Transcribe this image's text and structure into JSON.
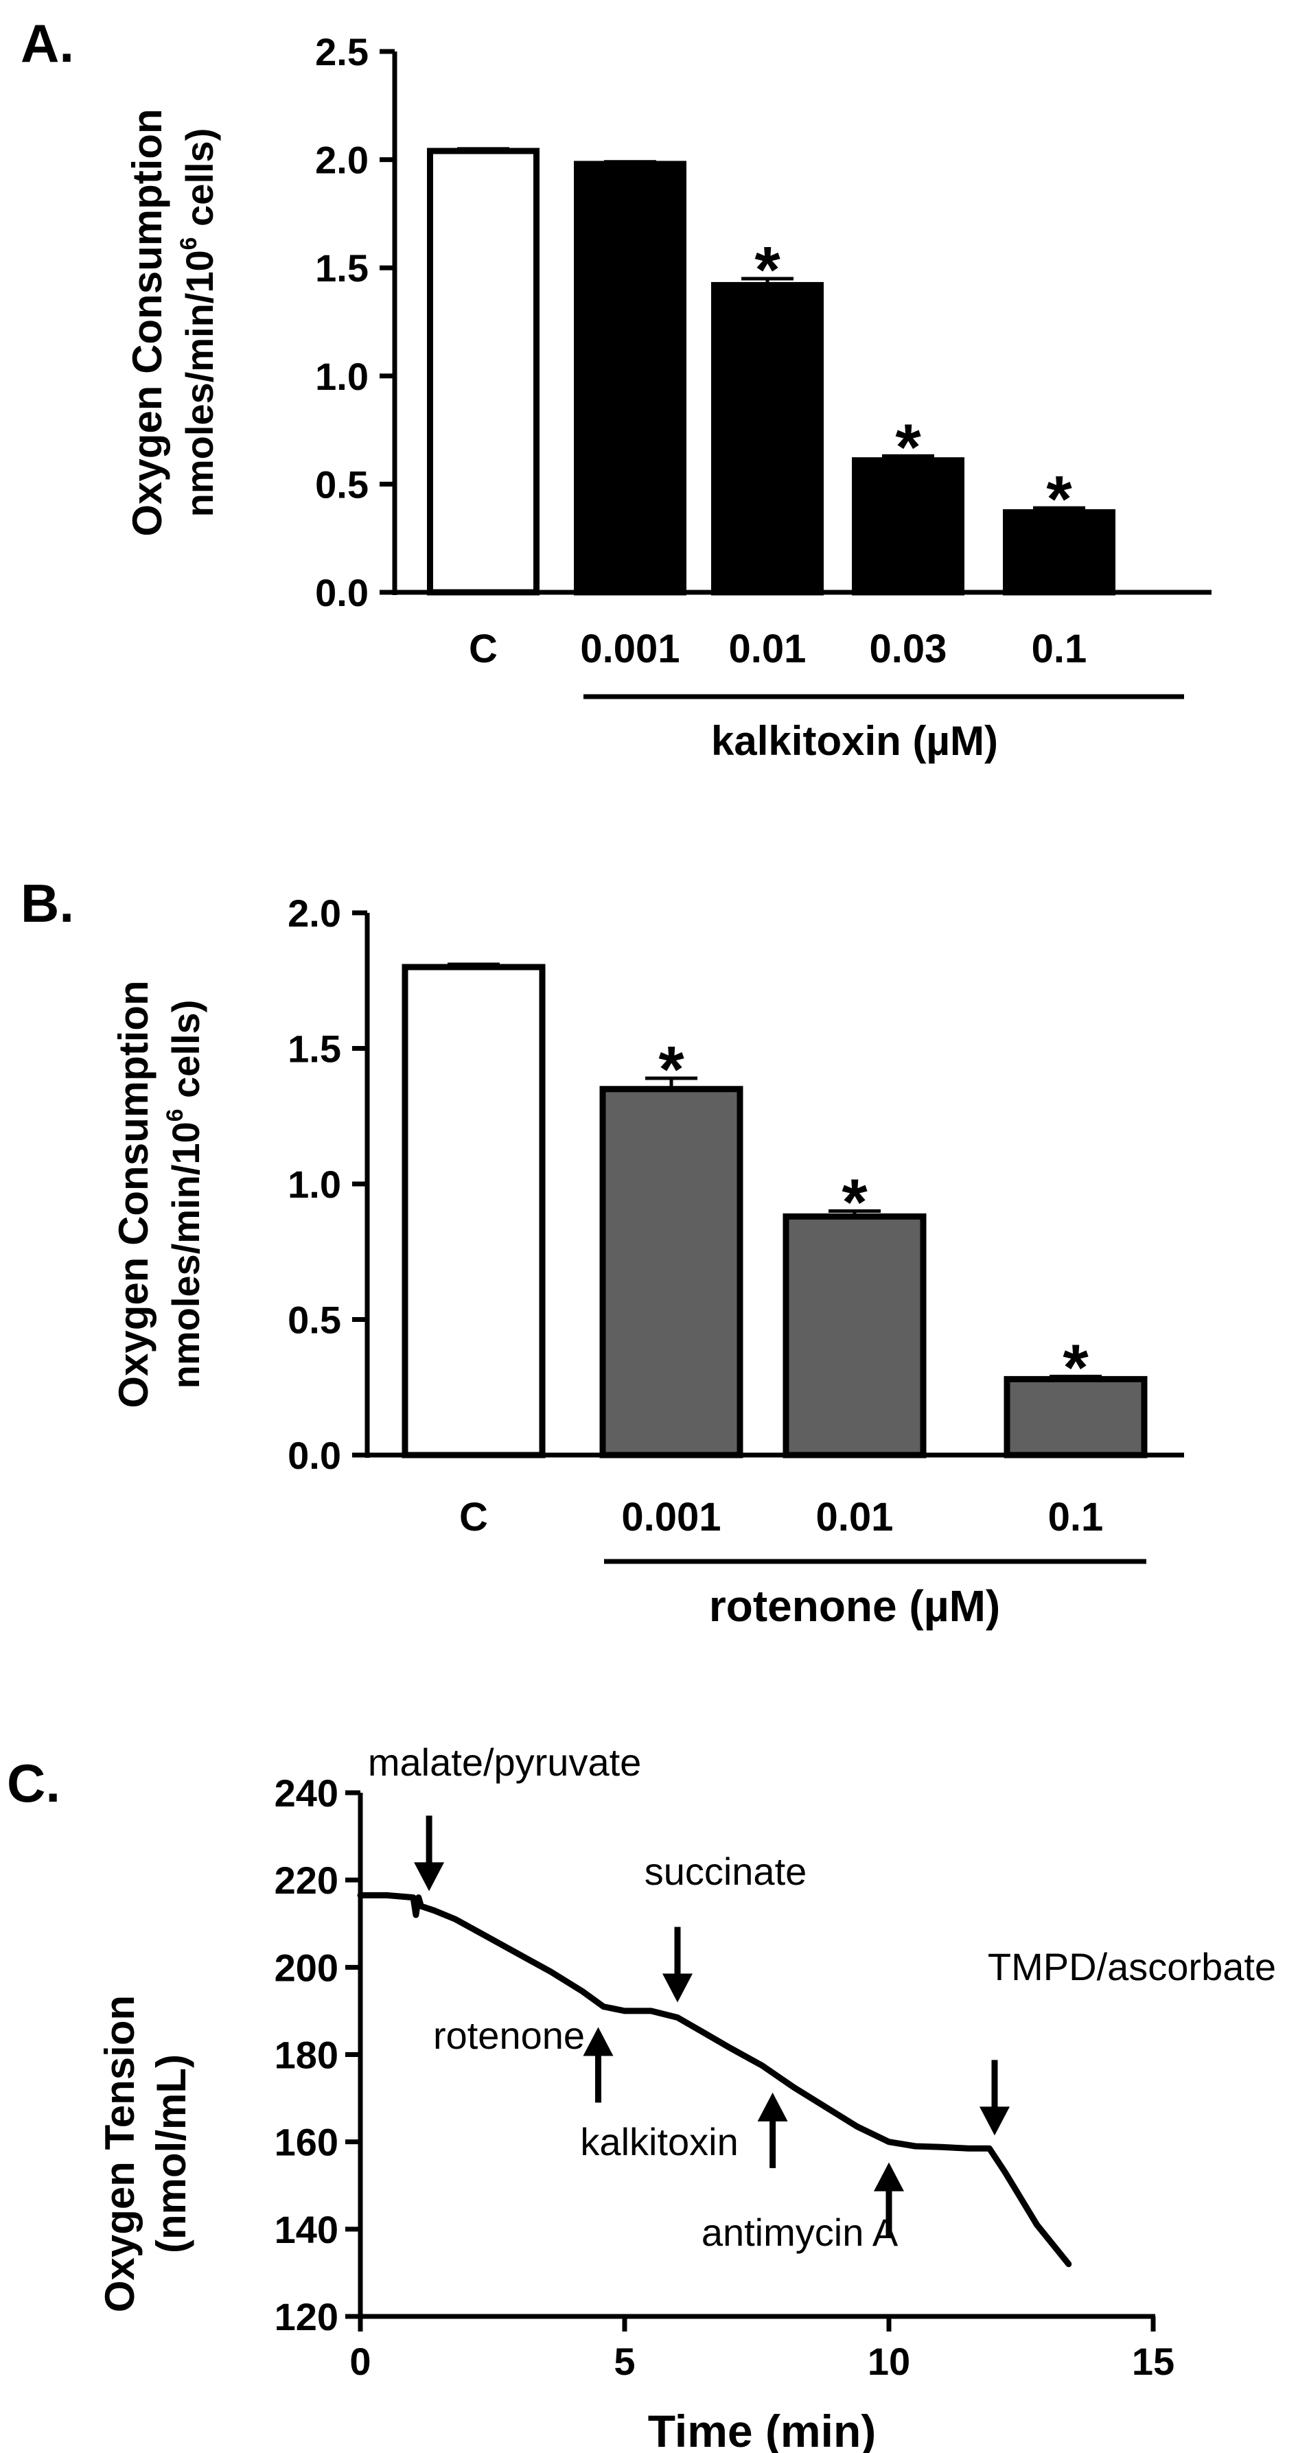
{
  "chart_data": [
    {
      "type": "bar",
      "panel_label": "A.",
      "ylabel": [
        "Oxygen Consumption",
        "nmoles/min/10",
        "6",
        " cells)"
      ],
      "ylim": [
        0,
        2.5
      ],
      "yticks": [
        "0.0",
        "0.5",
        "1.0",
        "1.5",
        "2.0",
        "2.5"
      ],
      "categories": [
        "C",
        "0.001",
        "0.01",
        "0.03",
        "0.1"
      ],
      "values": [
        2.04,
        1.98,
        1.42,
        0.61,
        0.37
      ],
      "errors": [
        0.01,
        0.01,
        0.03,
        0.02,
        0.02
      ],
      "fills": [
        "#ffffff",
        "#000000",
        "#000000",
        "#000000",
        "#000000"
      ],
      "significant": [
        false,
        false,
        true,
        true,
        true
      ],
      "group_label": "kalkitoxin (µM)",
      "asterisk": "*"
    },
    {
      "type": "bar",
      "panel_label": "B.",
      "ylabel": [
        "Oxygen Consumption",
        "nmoles/min/10",
        "6",
        " cells)"
      ],
      "ylim": [
        0,
        2.0
      ],
      "yticks": [
        "0.0",
        "0.5",
        "1.0",
        "1.5",
        "2.0"
      ],
      "categories": [
        "C",
        "0.001",
        "0.01",
        "0.1"
      ],
      "values": [
        1.8,
        1.35,
        0.88,
        0.28
      ],
      "errors": [
        0.01,
        0.04,
        0.02,
        0.01
      ],
      "fills": [
        "#ffffff",
        "#606060",
        "#606060",
        "#606060"
      ],
      "significant": [
        false,
        true,
        true,
        true
      ],
      "group_label": "rotenone (µM)",
      "asterisk": "*"
    },
    {
      "type": "line",
      "panel_label": "C.",
      "ylabel": [
        "Oxygen Tension",
        "(nmol/mL)"
      ],
      "xlabel": "Time (min)",
      "xlim": [
        0,
        15
      ],
      "ylim": [
        120,
        240
      ],
      "xticks": [
        "0",
        "5",
        "10",
        "15"
      ],
      "yticks": [
        "120",
        "140",
        "160",
        "180",
        "200",
        "220",
        "240"
      ],
      "series": [
        {
          "name": "Oxygen tension",
          "x": [
            0,
            0.5,
            1.0,
            1.05,
            1.1,
            1.15,
            1.4,
            1.8,
            2.4,
            3.0,
            3.6,
            4.2,
            4.6,
            5.0,
            5.5,
            6.0,
            6.5,
            7.0,
            7.6,
            8.2,
            8.8,
            9.4,
            10.0,
            10.5,
            11.0,
            11.5,
            11.9,
            12.2,
            12.5,
            12.8,
            13.1,
            13.4
          ],
          "y": [
            216.5,
            216.5,
            216,
            212,
            216,
            214,
            213,
            211,
            207,
            203,
            199,
            194.5,
            191,
            190,
            190,
            188.5,
            185,
            181.5,
            177.5,
            172.5,
            168,
            163.5,
            160,
            159,
            158.8,
            158.5,
            158.5,
            153,
            147,
            141,
            136.5,
            132
          ]
        }
      ],
      "annotations": [
        {
          "text": "malate/pyruvate",
          "x": 1.3,
          "arrow": "down",
          "value": 214
        },
        {
          "text": "rotenone",
          "x": 4.5,
          "arrow": "up",
          "value": 191
        },
        {
          "text": "succinate",
          "x": 6.0,
          "arrow": "down",
          "value": 188.5
        },
        {
          "text": "kalkitoxin",
          "x": 7.8,
          "arrow": "up",
          "value": 176
        },
        {
          "text": "antimycin A",
          "x": 10.0,
          "arrow": "up",
          "value": 160
        },
        {
          "text": "TMPD/ascorbate",
          "x": 12.0,
          "arrow": "down",
          "value": 158
        }
      ]
    }
  ]
}
